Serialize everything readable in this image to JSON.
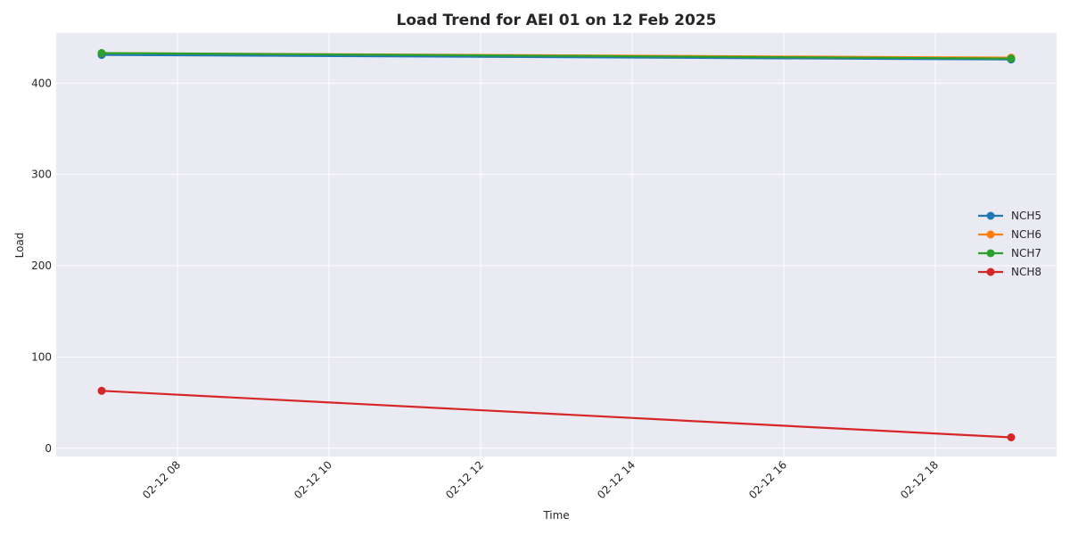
{
  "chart_data": {
    "type": "line",
    "title": "Load Trend for AEI 01 on 12 Feb 2025",
    "xlabel": "Time",
    "ylabel": "Load",
    "x_axis": {
      "type": "datetime",
      "range": [
        "2025-02-12T06:24",
        "2025-02-12T19:36"
      ],
      "ticks": [
        {
          "value": "2025-02-12T08:00",
          "label": "02-12 08"
        },
        {
          "value": "2025-02-12T10:00",
          "label": "02-12 10"
        },
        {
          "value": "2025-02-12T12:00",
          "label": "02-12 12"
        },
        {
          "value": "2025-02-12T14:00",
          "label": "02-12 14"
        },
        {
          "value": "2025-02-12T16:00",
          "label": "02-12 16"
        },
        {
          "value": "2025-02-12T18:00",
          "label": "02-12 18"
        }
      ]
    },
    "y_axis": {
      "range": [
        -9,
        455
      ],
      "ticks": [
        {
          "value": 0,
          "label": "0"
        },
        {
          "value": 100,
          "label": "100"
        },
        {
          "value": 200,
          "label": "200"
        },
        {
          "value": 300,
          "label": "300"
        },
        {
          "value": 400,
          "label": "400"
        }
      ]
    },
    "grid": true,
    "legend_position": "center-right",
    "x": [
      "2025-02-12T07:00",
      "2025-02-12T19:00"
    ],
    "series": [
      {
        "name": "NCH5",
        "color": "#1f77b4",
        "values": [
          431,
          426
        ]
      },
      {
        "name": "NCH6",
        "color": "#ff7f0e",
        "values": [
          433,
          428
        ]
      },
      {
        "name": "NCH7",
        "color": "#2ca02c",
        "values": [
          433,
          427
        ]
      },
      {
        "name": "NCH8",
        "color": "#d62728",
        "values": [
          63,
          12
        ]
      }
    ],
    "colors": {
      "plot_background": "#eaeaf2",
      "grid": "#ffffff",
      "text": "#262626"
    }
  }
}
